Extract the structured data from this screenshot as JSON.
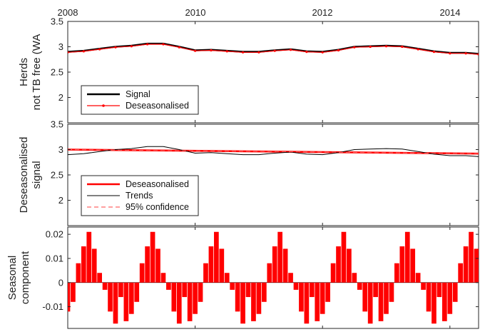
{
  "chart_data": [
    {
      "type": "line",
      "ylabel": [
        "Herds",
        "not TB free (WA"
      ],
      "xlim": [
        2008,
        2014.45
      ],
      "ylim": [
        1.5,
        3.5
      ],
      "x_tick_labels": [
        "2008",
        "2010",
        "2012",
        "2014"
      ],
      "x_ticks": [
        2008,
        2010,
        2012,
        2014
      ],
      "y_ticks": [
        2,
        2.5,
        3,
        3.5
      ],
      "y_tick_labels": [
        "2",
        "2.5",
        "3",
        "3.5"
      ],
      "legend": {
        "placement": "bottom-left",
        "entries": [
          "Signal",
          "Deseasonalised"
        ]
      },
      "series": [
        {
          "name": "Signal",
          "color": "#000000",
          "x": [
            2008.0,
            2008.25,
            2008.5,
            2008.75,
            2009.0,
            2009.25,
            2009.5,
            2009.75,
            2010.0,
            2010.25,
            2010.5,
            2010.75,
            2011.0,
            2011.25,
            2011.5,
            2011.75,
            2012.0,
            2012.25,
            2012.5,
            2012.75,
            2013.0,
            2013.25,
            2013.5,
            2013.75,
            2014.0,
            2014.25,
            2014.45
          ],
          "y": [
            2.9,
            2.92,
            2.96,
            3.0,
            3.02,
            3.06,
            3.06,
            3.0,
            2.93,
            2.94,
            2.92,
            2.9,
            2.9,
            2.93,
            2.95,
            2.91,
            2.9,
            2.94,
            3.0,
            3.01,
            3.02,
            3.01,
            2.96,
            2.91,
            2.88,
            2.88,
            2.86
          ]
        },
        {
          "name": "Deseasonalised",
          "color": "#ff0000",
          "x": [
            2008.0,
            2008.25,
            2008.5,
            2008.75,
            2009.0,
            2009.25,
            2009.5,
            2009.75,
            2010.0,
            2010.25,
            2010.5,
            2010.75,
            2011.0,
            2011.25,
            2011.5,
            2011.75,
            2012.0,
            2012.25,
            2012.5,
            2012.75,
            2013.0,
            2013.25,
            2013.5,
            2013.75,
            2014.0,
            2014.25,
            2014.45
          ],
          "y": [
            2.89,
            2.91,
            2.95,
            2.99,
            3.01,
            3.05,
            3.05,
            2.99,
            2.92,
            2.93,
            2.91,
            2.89,
            2.89,
            2.92,
            2.94,
            2.9,
            2.89,
            2.93,
            2.99,
            3.0,
            3.01,
            3.0,
            2.95,
            2.9,
            2.87,
            2.87,
            2.85
          ]
        }
      ]
    },
    {
      "type": "line",
      "ylabel": [
        "Deseasonalised",
        "signal"
      ],
      "xlim": [
        2008,
        2014.45
      ],
      "ylim": [
        1.5,
        3.5
      ],
      "y_ticks": [
        2,
        2.5,
        3,
        3.5
      ],
      "y_tick_labels": [
        "2",
        "2.5",
        "3",
        "3.5"
      ],
      "legend": {
        "placement": "bottom-left",
        "entries": [
          "Deseasonalised",
          "Trends",
          "95% confidence"
        ]
      },
      "series": [
        {
          "name": "Deseasonalised",
          "color": "#ff0000",
          "x": [
            2008.0,
            2014.45
          ],
          "y": [
            3.0,
            2.92
          ]
        },
        {
          "name": "Trends",
          "color": "#000000",
          "x": [
            2008.0,
            2008.25,
            2008.5,
            2008.75,
            2009.0,
            2009.25,
            2009.5,
            2009.75,
            2010.0,
            2010.25,
            2010.5,
            2010.75,
            2011.0,
            2011.25,
            2011.5,
            2011.75,
            2012.0,
            2012.25,
            2012.5,
            2012.75,
            2013.0,
            2013.25,
            2013.5,
            2013.75,
            2014.0,
            2014.25,
            2014.45
          ],
          "y": [
            2.9,
            2.92,
            2.96,
            3.0,
            3.02,
            3.06,
            3.06,
            3.0,
            2.93,
            2.94,
            2.92,
            2.9,
            2.9,
            2.93,
            2.95,
            2.91,
            2.9,
            2.94,
            3.0,
            3.01,
            3.02,
            3.01,
            2.96,
            2.91,
            2.88,
            2.88,
            2.86
          ]
        },
        {
          "name": "95% confidence",
          "color": "#ff6666",
          "dashed": true,
          "x": [
            2008.0,
            2014.45
          ],
          "y": [
            3.0,
            2.92
          ]
        }
      ]
    },
    {
      "type": "bar",
      "ylabel": [
        "Seasonal",
        "component"
      ],
      "xlim": [
        2008,
        2014.45
      ],
      "ylim": [
        -0.019,
        0.023
      ],
      "y_ticks": [
        -0.01,
        0,
        0.01,
        0.02
      ],
      "y_tick_labels": [
        "-0.01",
        "0",
        "0.01",
        "0.02"
      ],
      "color": "#ff0000",
      "x_start": 2008.0,
      "x_step": 0.08333,
      "values": [
        -0.012,
        -0.008,
        0.008,
        0.015,
        0.021,
        0.014,
        0.004,
        -0.003,
        -0.012,
        -0.017,
        -0.006,
        -0.016,
        -0.013,
        -0.008,
        0.008,
        0.015,
        0.021,
        0.014,
        0.004,
        -0.003,
        -0.012,
        -0.017,
        -0.006,
        -0.016,
        -0.013,
        -0.008,
        0.008,
        0.015,
        0.021,
        0.014,
        0.004,
        -0.003,
        -0.012,
        -0.017,
        -0.006,
        -0.016,
        -0.013,
        -0.008,
        0.008,
        0.015,
        0.021,
        0.014,
        0.004,
        -0.003,
        -0.012,
        -0.017,
        -0.006,
        -0.016,
        -0.013,
        -0.008,
        0.008,
        0.015,
        0.021,
        0.014,
        0.004,
        -0.003,
        -0.012,
        -0.017,
        -0.006,
        -0.016,
        -0.013,
        -0.008,
        0.008,
        0.015,
        0.021,
        0.014,
        0.004,
        -0.003,
        -0.012,
        -0.017,
        -0.006,
        -0.016,
        -0.013,
        -0.008,
        0.008,
        0.015,
        0.021,
        0.014
      ]
    }
  ]
}
